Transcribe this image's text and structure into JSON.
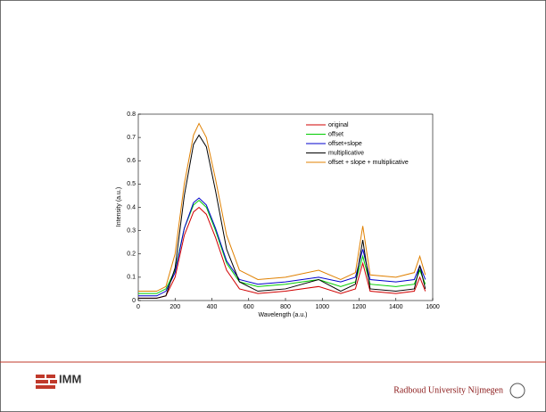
{
  "chart_data": {
    "type": "line",
    "xlabel": "Wavelength  (a.u.)",
    "ylabel": "Intensity (a.u.)",
    "x": [
      0,
      100,
      150,
      200,
      250,
      300,
      330,
      370,
      420,
      480,
      550,
      650,
      800,
      980,
      1100,
      1180,
      1220,
      1260,
      1400,
      1500,
      1530,
      1560
    ],
    "series": [
      {
        "name": "original",
        "color": "#d00000",
        "values": [
          0.01,
          0.01,
          0.02,
          0.1,
          0.28,
          0.38,
          0.4,
          0.37,
          0.27,
          0.13,
          0.05,
          0.03,
          0.04,
          0.06,
          0.03,
          0.05,
          0.16,
          0.04,
          0.03,
          0.04,
          0.1,
          0.04
        ]
      },
      {
        "name": "offset",
        "color": "#00cc00",
        "values": [
          0.03,
          0.03,
          0.05,
          0.13,
          0.31,
          0.41,
          0.43,
          0.4,
          0.3,
          0.16,
          0.08,
          0.06,
          0.07,
          0.09,
          0.06,
          0.08,
          0.19,
          0.07,
          0.06,
          0.07,
          0.13,
          0.07
        ]
      },
      {
        "name": "offset+slope",
        "color": "#0000cc",
        "values": [
          0.02,
          0.02,
          0.04,
          0.12,
          0.31,
          0.42,
          0.44,
          0.41,
          0.31,
          0.17,
          0.09,
          0.07,
          0.08,
          0.1,
          0.08,
          0.1,
          0.22,
          0.09,
          0.08,
          0.09,
          0.15,
          0.09
        ]
      },
      {
        "name": "multiplicative",
        "color": "#000000",
        "values": [
          0.01,
          0.01,
          0.02,
          0.14,
          0.45,
          0.67,
          0.71,
          0.66,
          0.47,
          0.22,
          0.08,
          0.04,
          0.05,
          0.09,
          0.04,
          0.07,
          0.26,
          0.05,
          0.04,
          0.05,
          0.15,
          0.05
        ]
      },
      {
        "name": "offset + slope + multiplicative",
        "color": "#e08000",
        "values": [
          0.04,
          0.04,
          0.06,
          0.2,
          0.5,
          0.71,
          0.76,
          0.7,
          0.52,
          0.28,
          0.13,
          0.09,
          0.1,
          0.13,
          0.09,
          0.12,
          0.32,
          0.11,
          0.1,
          0.12,
          0.19,
          0.11
        ]
      }
    ],
    "xlim": [
      0,
      1600
    ],
    "xticks": [
      0,
      200,
      400,
      600,
      800,
      1000,
      1200,
      1400,
      1600
    ],
    "ylim": [
      0,
      0.8
    ],
    "yticks": [
      0,
      0.1,
      0.2,
      0.3,
      0.4,
      0.5,
      0.6,
      0.7,
      0.8
    ],
    "legend": "upper right"
  },
  "footer": {
    "logo": "IMM",
    "university": "Radboud University Nijmegen"
  }
}
